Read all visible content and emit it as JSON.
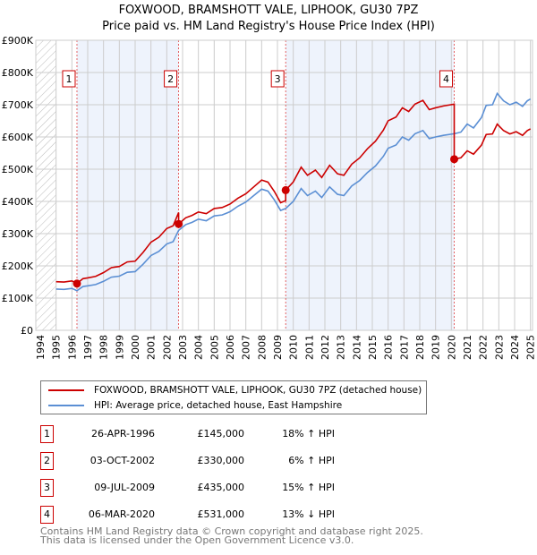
{
  "chart_data": {
    "type": "line",
    "title": "FOXWOOD, BRAMSHOTT VALE, LIPHOOK, GU30 7PZ",
    "subtitle": "Price paid vs. HM Land Registry's House Price Index (HPI)",
    "xlim": [
      1994,
      2025
    ],
    "ylim": [
      0,
      900000
    ],
    "y_ticks": [
      {
        "v": 0,
        "label": "£0"
      },
      {
        "v": 100000,
        "label": "£100K"
      },
      {
        "v": 200000,
        "label": "£200K"
      },
      {
        "v": 300000,
        "label": "£300K"
      },
      {
        "v": 400000,
        "label": "£400K"
      },
      {
        "v": 500000,
        "label": "£500K"
      },
      {
        "v": 600000,
        "label": "£600K"
      },
      {
        "v": 700000,
        "label": "£700K"
      },
      {
        "v": 800000,
        "label": "£800K"
      },
      {
        "v": 900000,
        "label": "£900K"
      }
    ],
    "x_ticks": [
      "1994",
      "1995",
      "1996",
      "1997",
      "1998",
      "1999",
      "2000",
      "2001",
      "2002",
      "2003",
      "2004",
      "2005",
      "2006",
      "2007",
      "2008",
      "2009",
      "2010",
      "2011",
      "2012",
      "2013",
      "2014",
      "2015",
      "2016",
      "2017",
      "2018",
      "2019",
      "2020",
      "2021",
      "2022",
      "2023",
      "2024",
      "2025"
    ],
    "grid": true,
    "colors": {
      "property": "#cc0000",
      "hpi": "#5b8fd4",
      "band": "#eef3fc"
    },
    "legend": [
      "FOXWOOD, BRAMSHOTT VALE, LIPHOOK, GU30 7PZ (detached house)",
      "HPI: Average price, detached house, East Hampshire"
    ],
    "hpi_series": [
      [
        1995,
        128
      ],
      [
        1995.5,
        127
      ],
      [
        1996,
        130
      ],
      [
        1996.32,
        123
      ],
      [
        1996.7,
        136
      ],
      [
        1997,
        138
      ],
      [
        1997.5,
        142
      ],
      [
        1998,
        152
      ],
      [
        1998.5,
        165
      ],
      [
        1999,
        168
      ],
      [
        1999.5,
        180
      ],
      [
        2000,
        182
      ],
      [
        2000.5,
        205
      ],
      [
        2001,
        232
      ],
      [
        2001.5,
        245
      ],
      [
        2002,
        268
      ],
      [
        2002.4,
        275
      ],
      [
        2002.75,
        310
      ],
      [
        2003.2,
        328
      ],
      [
        2003.6,
        335
      ],
      [
        2004,
        345
      ],
      [
        2004.5,
        340
      ],
      [
        2005,
        355
      ],
      [
        2005.5,
        358
      ],
      [
        2006,
        368
      ],
      [
        2006.5,
        385
      ],
      [
        2007,
        398
      ],
      [
        2007.5,
        418
      ],
      [
        2008,
        438
      ],
      [
        2008.4,
        432
      ],
      [
        2008.8,
        405
      ],
      [
        2009.2,
        372
      ],
      [
        2009.52,
        378
      ],
      [
        2010,
        400
      ],
      [
        2010.5,
        440
      ],
      [
        2010.9,
        418
      ],
      [
        2011.4,
        432
      ],
      [
        2011.8,
        412
      ],
      [
        2012.3,
        445
      ],
      [
        2012.8,
        422
      ],
      [
        2013.2,
        418
      ],
      [
        2013.7,
        448
      ],
      [
        2014.2,
        465
      ],
      [
        2014.7,
        490
      ],
      [
        2015.2,
        510
      ],
      [
        2015.7,
        540
      ],
      [
        2016,
        565
      ],
      [
        2016.5,
        575
      ],
      [
        2016.9,
        600
      ],
      [
        2017.3,
        590
      ],
      [
        2017.7,
        610
      ],
      [
        2018.2,
        620
      ],
      [
        2018.6,
        595
      ],
      [
        2019,
        600
      ],
      [
        2019.5,
        605
      ],
      [
        2020.18,
        610
      ],
      [
        2020.6,
        615
      ],
      [
        2021,
        640
      ],
      [
        2021.4,
        628
      ],
      [
        2021.9,
        660
      ],
      [
        2022.2,
        698
      ],
      [
        2022.6,
        700
      ],
      [
        2022.9,
        735
      ],
      [
        2023.3,
        712
      ],
      [
        2023.7,
        700
      ],
      [
        2024.1,
        708
      ],
      [
        2024.5,
        695
      ],
      [
        2024.8,
        712
      ],
      [
        2025,
        718
      ]
    ],
    "hpi_units": "thousands GBP",
    "sales": [
      {
        "n": "1",
        "date": "26-APR-1996",
        "t": 1996.32,
        "price": 145000,
        "price_label": "£145,000",
        "hpi": "18% ↑ HPI"
      },
      {
        "n": "2",
        "date": "03-OCT-2002",
        "t": 2002.75,
        "price": 330000,
        "price_label": "£330,000",
        "hpi": "6% ↑ HPI"
      },
      {
        "n": "3",
        "date": "09-JUL-2009",
        "t": 2009.52,
        "price": 435000,
        "price_label": "£435,000",
        "hpi": "15% ↑ HPI"
      },
      {
        "n": "4",
        "date": "06-MAR-2020",
        "t": 2020.18,
        "price": 531000,
        "price_label": "£531,000",
        "hpi": "13% ↓ HPI"
      }
    ]
  },
  "footer": [
    "Contains HM Land Registry data © Crown copyright and database right 2025.",
    "This data is licensed under the Open Government Licence v3.0."
  ]
}
